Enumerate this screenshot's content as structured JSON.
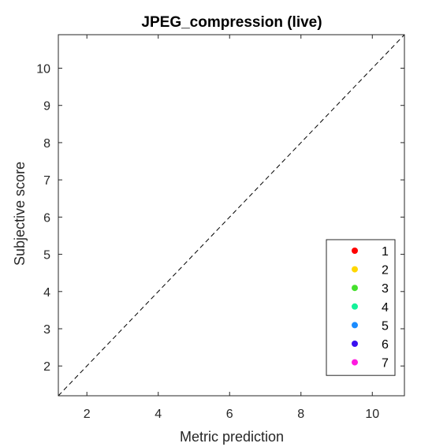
{
  "chart_data": {
    "type": "scatter",
    "title": "JPEG_compression (live)",
    "xlabel": "Metric prediction",
    "ylabel": "Subjective score",
    "xlim": [
      1.2,
      10.9
    ],
    "ylim": [
      1.2,
      10.9
    ],
    "x_ticks": [
      2,
      4,
      6,
      8,
      10
    ],
    "y_ticks": [
      2,
      3,
      4,
      5,
      6,
      7,
      8,
      9,
      10
    ],
    "reference_line": {
      "from": [
        1.2,
        1.2
      ],
      "to": [
        10.9,
        10.9
      ],
      "style": "dashed",
      "color": "#000000"
    },
    "grid": false,
    "legend_position": "bottom-right",
    "series": [
      {
        "name": "1",
        "color": "#ff0000",
        "points": []
      },
      {
        "name": "2",
        "color": "#ffd700",
        "points": []
      },
      {
        "name": "3",
        "color": "#44e02c",
        "points": []
      },
      {
        "name": "4",
        "color": "#14f29a",
        "points": []
      },
      {
        "name": "5",
        "color": "#1a8cff",
        "points": []
      },
      {
        "name": "6",
        "color": "#3a0ff0",
        "points": []
      },
      {
        "name": "7",
        "color": "#ff1ae0",
        "points": []
      }
    ]
  }
}
